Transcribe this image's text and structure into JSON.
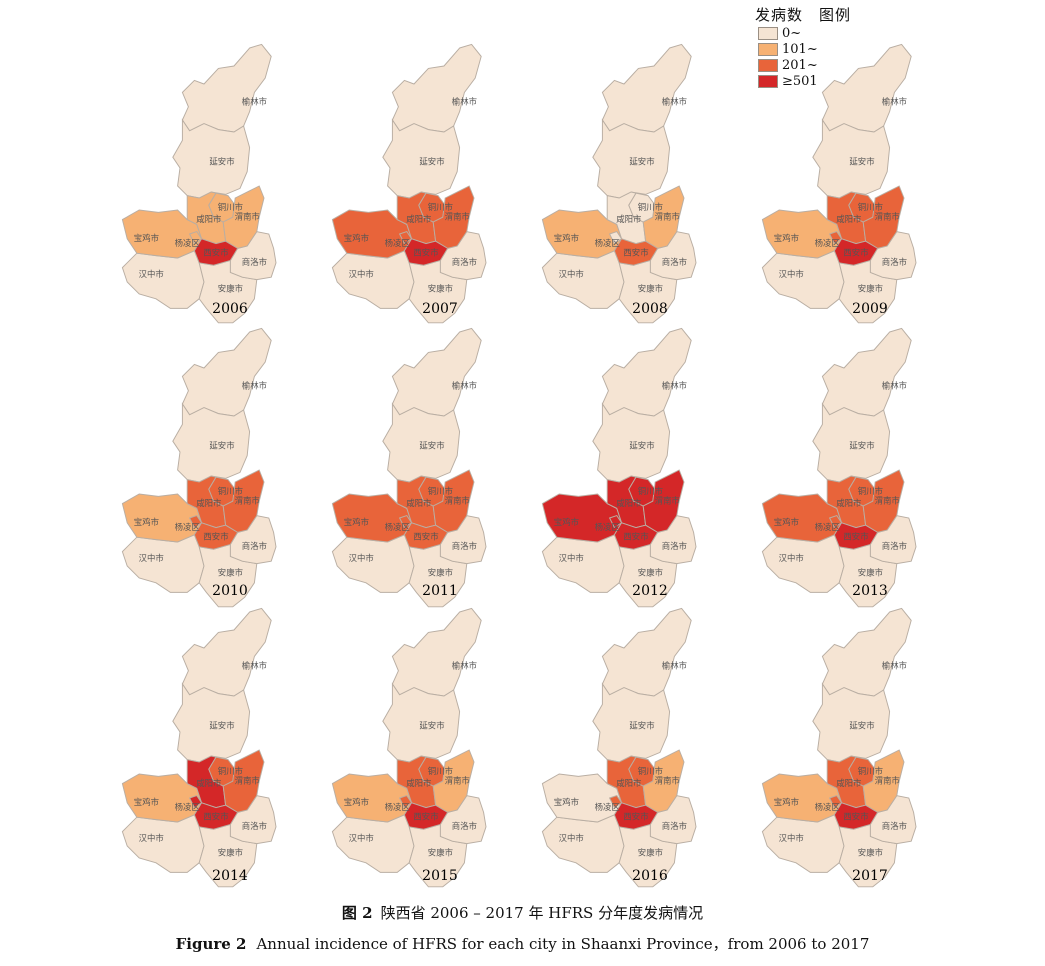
{
  "legend": {
    "title": "发病数　图例",
    "items": [
      {
        "label": "0~",
        "color": "#f5e4d3"
      },
      {
        "label": "101~",
        "color": "#f6b173"
      },
      {
        "label": "201~",
        "color": "#e8643a"
      },
      {
        "label": "≥501",
        "color": "#d42728"
      }
    ]
  },
  "cities": {
    "yulin": "榆林市",
    "yanan": "延安市",
    "tongchuan": "铜川市",
    "weinan": "渭南市",
    "xianyang": "咸阳市",
    "baoji": "宝鸡市",
    "yangling": "杨凌区",
    "xian": "西安市",
    "shangluo": "商洛市",
    "hanzhong": "汉中市",
    "ankang": "安康市"
  },
  "maps": [
    {
      "year": "2006",
      "classes": {
        "baoji": 1,
        "xianyang": 1,
        "tongchuan": 1,
        "weinan": 1,
        "xian": 3
      }
    },
    {
      "year": "2007",
      "classes": {
        "baoji": 2,
        "xianyang": 2,
        "tongchuan": 2,
        "weinan": 2,
        "xian": 3
      }
    },
    {
      "year": "2008",
      "classes": {
        "baoji": 1,
        "xianyang": 0,
        "tongchuan": 0,
        "weinan": 1,
        "xian": 2
      }
    },
    {
      "year": "2009",
      "classes": {
        "baoji": 1,
        "xianyang": 2,
        "tongchuan": 2,
        "weinan": 2,
        "xian": 3
      }
    },
    {
      "year": "2010",
      "classes": {
        "baoji": 1,
        "xianyang": 2,
        "tongchuan": 2,
        "weinan": 2,
        "xian": 2
      }
    },
    {
      "year": "2011",
      "classes": {
        "baoji": 2,
        "xianyang": 2,
        "tongchuan": 2,
        "weinan": 2,
        "xian": 2
      }
    },
    {
      "year": "2012",
      "classes": {
        "baoji": 3,
        "xianyang": 3,
        "tongchuan": 3,
        "weinan": 3,
        "xian": 3
      }
    },
    {
      "year": "2013",
      "classes": {
        "baoji": 2,
        "xianyang": 2,
        "tongchuan": 2,
        "weinan": 2,
        "xian": 3
      }
    },
    {
      "year": "2014",
      "classes": {
        "baoji": 1,
        "xianyang": 3,
        "tongchuan": 2,
        "weinan": 2,
        "xian": 3
      }
    },
    {
      "year": "2015",
      "classes": {
        "baoji": 1,
        "xianyang": 2,
        "tongchuan": 2,
        "weinan": 1,
        "xian": 3
      }
    },
    {
      "year": "2016",
      "classes": {
        "baoji": 0,
        "xianyang": 2,
        "tongchuan": 2,
        "weinan": 1,
        "xian": 3
      }
    },
    {
      "year": "2017",
      "classes": {
        "baoji": 1,
        "xianyang": 2,
        "tongchuan": 2,
        "weinan": 1,
        "xian": 3
      }
    }
  ],
  "caption": {
    "cn_label": "图 2",
    "cn_text": "陕西省 2006 – 2017 年 HFRS 分年度发病情况",
    "en_label": "Figure 2",
    "en_text": "Annual incidence of HFRS for each city in Shaanxi Province，from 2006 to 2017"
  }
}
